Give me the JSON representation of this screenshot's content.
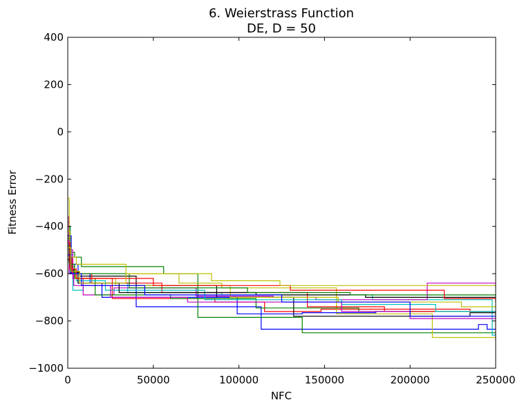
{
  "chart_data": {
    "type": "line",
    "step": true,
    "title": "6.   Weierstrass Function",
    "subtitle": "DE, D = 50",
    "xlabel": "NFC",
    "ylabel": "Fitness Error",
    "xlim": [
      0,
      250000
    ],
    "ylim": [
      -1000,
      400
    ],
    "xticks": [
      0,
      50000,
      100000,
      150000,
      200000,
      250000
    ],
    "yticks": [
      -1000,
      -800,
      -600,
      -400,
      -200,
      0,
      200,
      400
    ],
    "xtick_labels": [
      "0",
      "50000",
      "100000",
      "150000",
      "200000",
      "250000"
    ],
    "ytick_labels": [
      "−1000",
      "−800",
      "−600",
      "−400",
      "−200",
      "0",
      "200",
      "400"
    ],
    "grid": false,
    "legend": "none",
    "series": [
      {
        "color": "#0000ff",
        "x": [
          0,
          1000,
          3000,
          6000,
          11000,
          13000,
          40000,
          113000,
          240000,
          245000,
          250000
        ],
        "y": [
          -420,
          -520,
          -560,
          -600,
          -600,
          -640,
          -740,
          -835,
          -815,
          -835,
          -835
        ]
      },
      {
        "color": "#008000",
        "x": [
          0,
          1500,
          4000,
          8000,
          56000,
          76000,
          137000,
          250000
        ],
        "y": [
          -400,
          -510,
          -530,
          -570,
          -600,
          -785,
          -850,
          -870
        ]
      },
      {
        "color": "#ff0000",
        "x": [
          0,
          800,
          2500,
          6000,
          26000,
          86000,
          115000,
          148000,
          235000,
          250000
        ],
        "y": [
          -380,
          -530,
          -590,
          -620,
          -705,
          -720,
          -760,
          -750,
          -760,
          -885
        ]
      },
      {
        "color": "#00bfbf",
        "x": [
          0,
          1200,
          3000,
          9000,
          35000,
          90000,
          178000,
          248000,
          250000
        ],
        "y": [
          -400,
          -560,
          -670,
          -640,
          -680,
          -690,
          -710,
          -860,
          -860
        ]
      },
      {
        "color": "#bf00bf",
        "x": [
          0,
          600,
          3000,
          9000,
          27000,
          75000,
          120000,
          145000,
          210000,
          250000
        ],
        "y": [
          -360,
          -500,
          -620,
          -690,
          -660,
          -695,
          -700,
          -710,
          -640,
          -660
        ]
      },
      {
        "color": "#bfbf00",
        "x": [
          0,
          900,
          2000,
          5000,
          34000,
          65000,
          90000,
          157000,
          213000,
          250000
        ],
        "y": [
          -280,
          -470,
          -530,
          -560,
          -600,
          -640,
          -660,
          -770,
          -870,
          -870
        ]
      },
      {
        "color": "#000000",
        "x": [
          0,
          1100,
          3500,
          7000,
          40000,
          87000,
          132000,
          235000,
          250000
        ],
        "y": [
          -520,
          -580,
          -595,
          -610,
          -650,
          -700,
          -780,
          -765,
          -765
        ]
      },
      {
        "color": "#0000ff",
        "x": [
          0,
          2000,
          6000,
          20000,
          99000,
          137000,
          180000,
          250000
        ],
        "y": [
          -440,
          -600,
          -640,
          -700,
          -770,
          -765,
          -760,
          -760
        ]
      },
      {
        "color": "#008000",
        "x": [
          0,
          1000,
          4000,
          16000,
          60000,
          110000,
          170000,
          250000
        ],
        "y": [
          -450,
          -570,
          -620,
          -690,
          -705,
          -745,
          -760,
          -790
        ]
      },
      {
        "color": "#ff0000",
        "x": [
          0,
          700,
          2500,
          14000,
          55000,
          140000,
          185000,
          250000
        ],
        "y": [
          -500,
          -550,
          -600,
          -640,
          -680,
          -740,
          -760,
          -780
        ]
      },
      {
        "color": "#00bfbf",
        "x": [
          0,
          1400,
          5000,
          22000,
          80000,
          160000,
          215000,
          250000
        ],
        "y": [
          -500,
          -600,
          -630,
          -670,
          -710,
          -730,
          -760,
          -760
        ]
      },
      {
        "color": "#bf00bf",
        "x": [
          0,
          800,
          3500,
          25000,
          70000,
          160000,
          200000,
          250000
        ],
        "y": [
          -460,
          -600,
          -650,
          -700,
          -720,
          -760,
          -790,
          -790
        ]
      },
      {
        "color": "#bfbf00",
        "x": [
          0,
          1300,
          4500,
          28000,
          95000,
          158000,
          230000,
          250000
        ],
        "y": [
          -420,
          -580,
          -620,
          -650,
          -700,
          -720,
          -740,
          -740
        ]
      },
      {
        "color": "#000000",
        "x": [
          0,
          1600,
          6000,
          30000,
          110000,
          174000,
          250000
        ],
        "y": [
          -540,
          -590,
          -640,
          -680,
          -690,
          -700,
          -700
        ]
      },
      {
        "color": "#008000",
        "x": [
          0,
          900,
          4000,
          36000,
          105000,
          165000,
          250000
        ],
        "y": [
          -480,
          -560,
          -600,
          -660,
          -680,
          -690,
          -720
        ]
      },
      {
        "color": "#ff0000",
        "x": [
          0,
          1200,
          5000,
          50000,
          130000,
          220000,
          250000
        ],
        "y": [
          -470,
          -580,
          -620,
          -650,
          -670,
          -705,
          -720
        ]
      },
      {
        "color": "#0000ff",
        "x": [
          0,
          1700,
          8000,
          45000,
          125000,
          200000,
          250000
        ],
        "y": [
          -520,
          -600,
          -650,
          -690,
          -720,
          -780,
          -780
        ]
      },
      {
        "color": "#bfbf00",
        "x": [
          0,
          1800,
          7000,
          34000,
          84000,
          124000,
          250000
        ],
        "y": [
          -490,
          -590,
          -640,
          -600,
          -630,
          -650,
          -650
        ]
      }
    ]
  }
}
